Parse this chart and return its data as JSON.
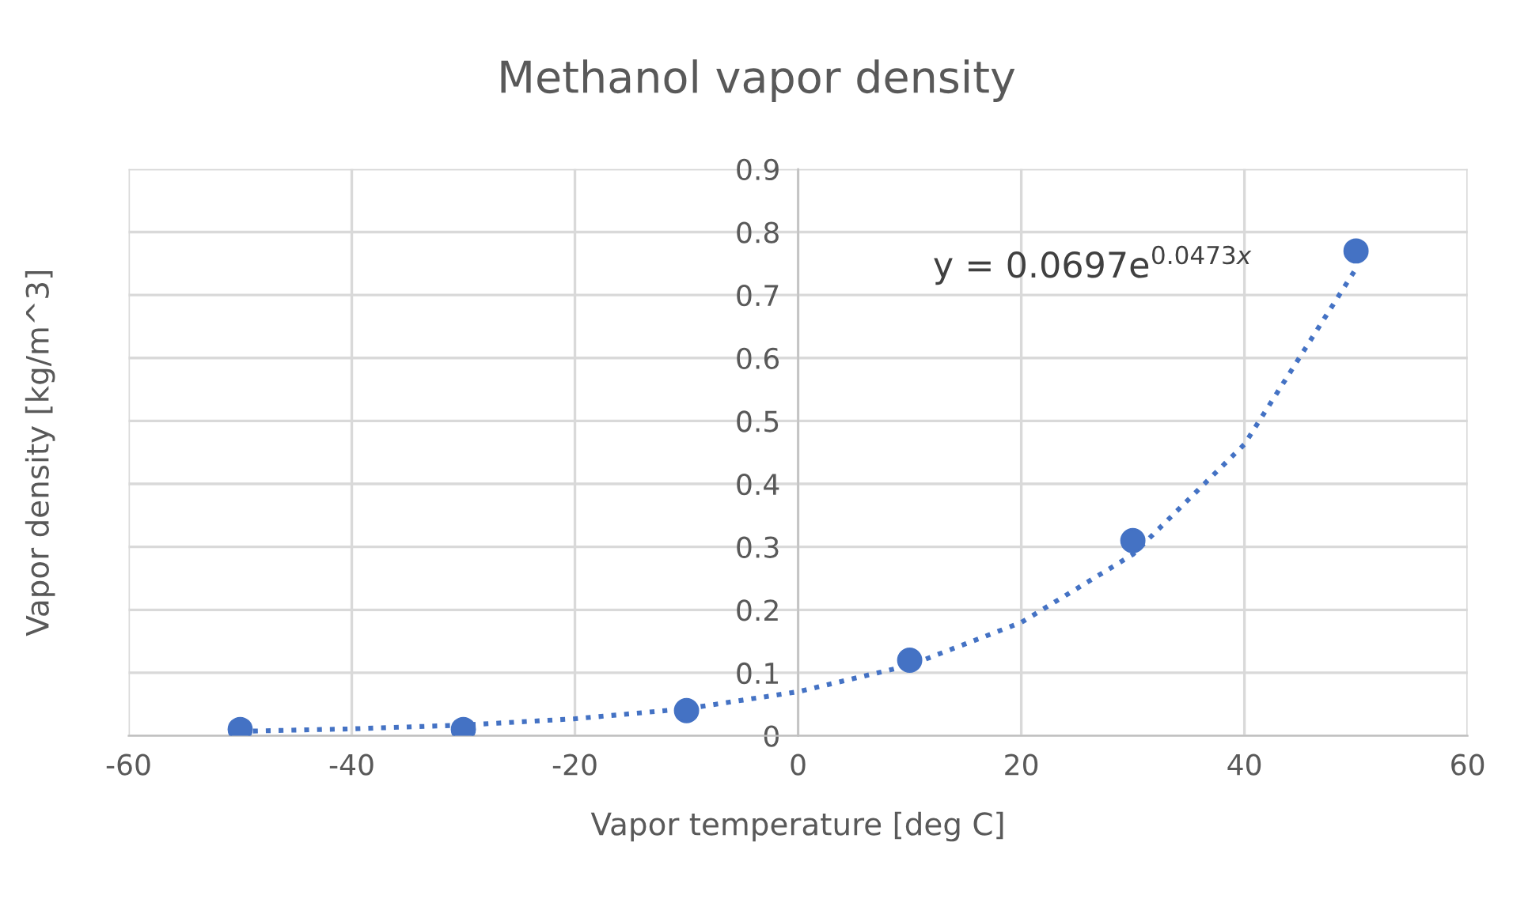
{
  "chart_data": {
    "type": "scatter",
    "title": "Methanol vapor density",
    "xlabel": "Vapor temperature [deg C]",
    "ylabel": "Vapor density [kg/m^3]",
    "annotations": [
      "y = 0.0697e$^{0.0473x}$"
    ],
    "series": [
      {
        "color": "#4472c4",
        "marker": "circle",
        "x": [
          -50,
          -30,
          -10,
          10,
          30,
          50
        ],
        "values": [
          0.01,
          0.01,
          0.04,
          0.12,
          0.31,
          0.77
        ]
      },
      {
        "type": "line",
        "color": "#4472c4",
        "marker": "none",
        "line_style": "dotted",
        "x": [
          -50,
          -40,
          -30,
          -20,
          -10,
          0,
          10,
          20,
          30,
          40,
          50
        ],
        "values": [
          0.007,
          0.011,
          0.017,
          0.027,
          0.043,
          0.07,
          0.112,
          0.18,
          0.288,
          0.463,
          0.742
        ]
      }
    ],
    "xlim": [
      -60,
      60
    ],
    "xticks": [
      -60,
      -40,
      -20,
      0,
      20,
      40,
      60
    ],
    "ylim": [
      0,
      0.9
    ],
    "yticks": [
      0,
      0.1,
      0.2,
      0.3,
      0.4,
      0.5,
      0.6,
      0.7,
      0.8,
      0.9
    ],
    "grid": true
  }
}
